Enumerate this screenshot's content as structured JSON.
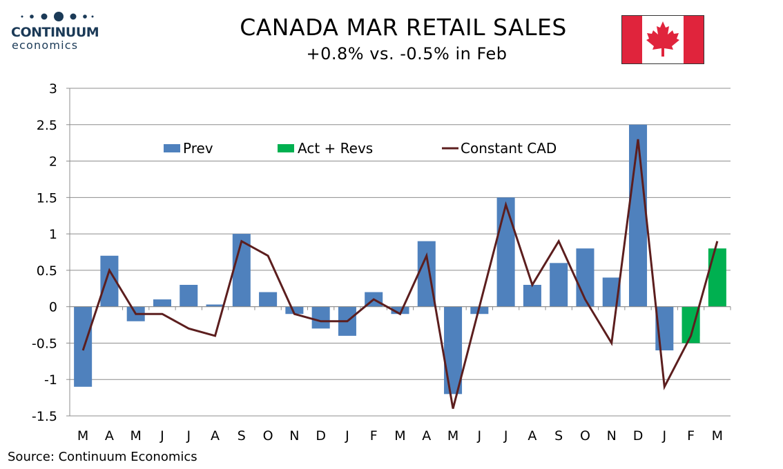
{
  "header": {
    "logo_word": "CONTINUUM",
    "logo_sub": "economics",
    "title": "CANADA MAR RETAIL SALES",
    "subtitle": "+0.8% vs. -0.5% in Feb"
  },
  "source": "Source: Continuum Economics",
  "colors": {
    "prev": "#4f81bd",
    "act": "#00b050",
    "line": "#5c1e1e",
    "grid": "#8c8c8c",
    "flag_red": "#e0243c",
    "logo": "#1b3a57"
  },
  "chart_data": {
    "type": "bar",
    "categories": [
      "M",
      "A",
      "M",
      "J",
      "J",
      "A",
      "S",
      "O",
      "N",
      "D",
      "J",
      "F",
      "M",
      "A",
      "M",
      "J",
      "J",
      "A",
      "S",
      "O",
      "N",
      "D",
      "J",
      "F",
      "M"
    ],
    "series": [
      {
        "name": "Prev",
        "type": "bar",
        "values": [
          -1.1,
          0.7,
          -0.2,
          0.1,
          0.3,
          0.03,
          1.0,
          0.2,
          -0.1,
          -0.3,
          -0.4,
          0.2,
          -0.1,
          0.9,
          -1.2,
          -0.1,
          1.5,
          0.3,
          0.6,
          0.8,
          0.4,
          2.5,
          -0.6,
          -0.4,
          null
        ]
      },
      {
        "name": "Act + Revs",
        "type": "bar",
        "values": [
          null,
          null,
          null,
          null,
          null,
          null,
          null,
          null,
          null,
          null,
          null,
          null,
          null,
          null,
          null,
          null,
          null,
          null,
          null,
          null,
          null,
          null,
          null,
          -0.5,
          0.8
        ]
      },
      {
        "name": "Constant CAD",
        "type": "line",
        "values": [
          -0.6,
          0.5,
          -0.1,
          -0.1,
          -0.3,
          -0.4,
          0.9,
          0.7,
          -0.1,
          -0.2,
          -0.2,
          0.1,
          -0.1,
          0.7,
          -1.4,
          0.0,
          1.4,
          0.3,
          0.9,
          0.1,
          -0.5,
          2.3,
          -1.1,
          -0.4,
          0.9
        ]
      }
    ],
    "yticks": [
      "3",
      "2.5",
      "2",
      "1.5",
      "1",
      "0.5",
      "0",
      "-0.5",
      "-1",
      "-1.5"
    ],
    "ylim": [
      -1.5,
      3
    ],
    "grid": true,
    "legend_position": "top"
  }
}
